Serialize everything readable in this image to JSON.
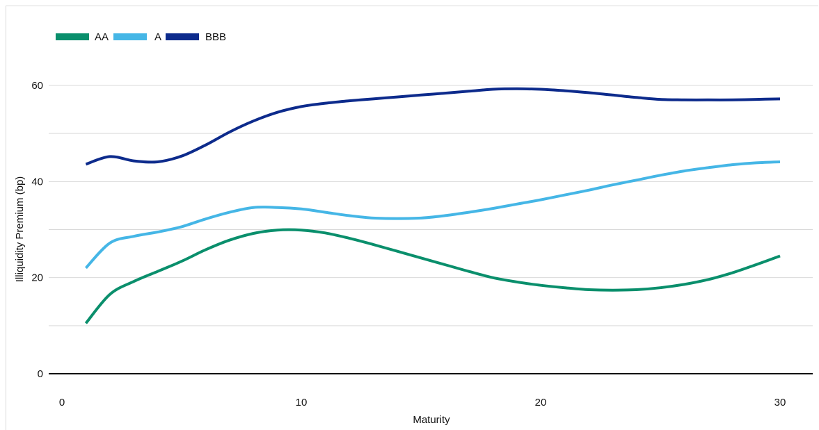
{
  "chart_data": {
    "type": "line",
    "title": "",
    "xlabel": "Maturity",
    "ylabel": "Illiquidity Premium (bp)",
    "xlim": [
      -1,
      31
    ],
    "ylim": [
      0,
      60
    ],
    "x_ticks": [
      "0",
      "10",
      "20",
      "30"
    ],
    "y_ticks": [
      "0",
      "20",
      "40",
      "60"
    ],
    "grid": true,
    "legend_position": "top-left",
    "series": [
      {
        "name": "AA",
        "color": "#0a8f6c",
        "x": [
          1,
          2,
          3,
          4,
          5,
          6,
          7,
          8,
          9,
          10,
          11,
          12,
          13,
          14,
          15,
          16,
          17,
          18,
          19,
          20,
          21,
          22,
          23,
          24,
          25,
          26,
          27,
          28,
          29,
          30
        ],
        "values": [
          10.5,
          16.5,
          19.2,
          21.3,
          23.4,
          25.8,
          27.8,
          29.2,
          29.9,
          29.9,
          29.3,
          28.2,
          26.9,
          25.5,
          24.1,
          22.7,
          21.3,
          20.0,
          19.1,
          18.4,
          17.9,
          17.5,
          17.4,
          17.5,
          17.9,
          18.6,
          19.6,
          21.0,
          22.7,
          24.5
        ]
      },
      {
        "name": "A",
        "color": "#45b6e6",
        "x": [
          1,
          2,
          3,
          4,
          5,
          6,
          7,
          8,
          9,
          10,
          11,
          12,
          13,
          14,
          15,
          16,
          17,
          18,
          19,
          20,
          21,
          22,
          23,
          24,
          25,
          26,
          27,
          28,
          29,
          30
        ],
        "values": [
          22.0,
          27.2,
          28.6,
          29.5,
          30.6,
          32.2,
          33.6,
          34.6,
          34.6,
          34.3,
          33.6,
          32.9,
          32.4,
          32.3,
          32.4,
          32.9,
          33.6,
          34.4,
          35.3,
          36.2,
          37.2,
          38.2,
          39.3,
          40.3,
          41.3,
          42.2,
          42.9,
          43.5,
          43.9,
          44.1
        ]
      },
      {
        "name": "BBB",
        "color": "#0d2b8c",
        "x": [
          1,
          2,
          3,
          4,
          5,
          6,
          7,
          8,
          9,
          10,
          11,
          12,
          13,
          14,
          15,
          16,
          17,
          18,
          19,
          20,
          21,
          22,
          23,
          24,
          25,
          26,
          27,
          28,
          29,
          30
        ],
        "values": [
          43.6,
          45.2,
          44.3,
          44.1,
          45.3,
          47.6,
          50.3,
          52.6,
          54.4,
          55.6,
          56.3,
          56.8,
          57.2,
          57.6,
          58.0,
          58.4,
          58.8,
          59.2,
          59.3,
          59.2,
          58.9,
          58.5,
          58.0,
          57.5,
          57.1,
          57.0,
          57.0,
          57.0,
          57.1,
          57.2
        ]
      }
    ]
  }
}
